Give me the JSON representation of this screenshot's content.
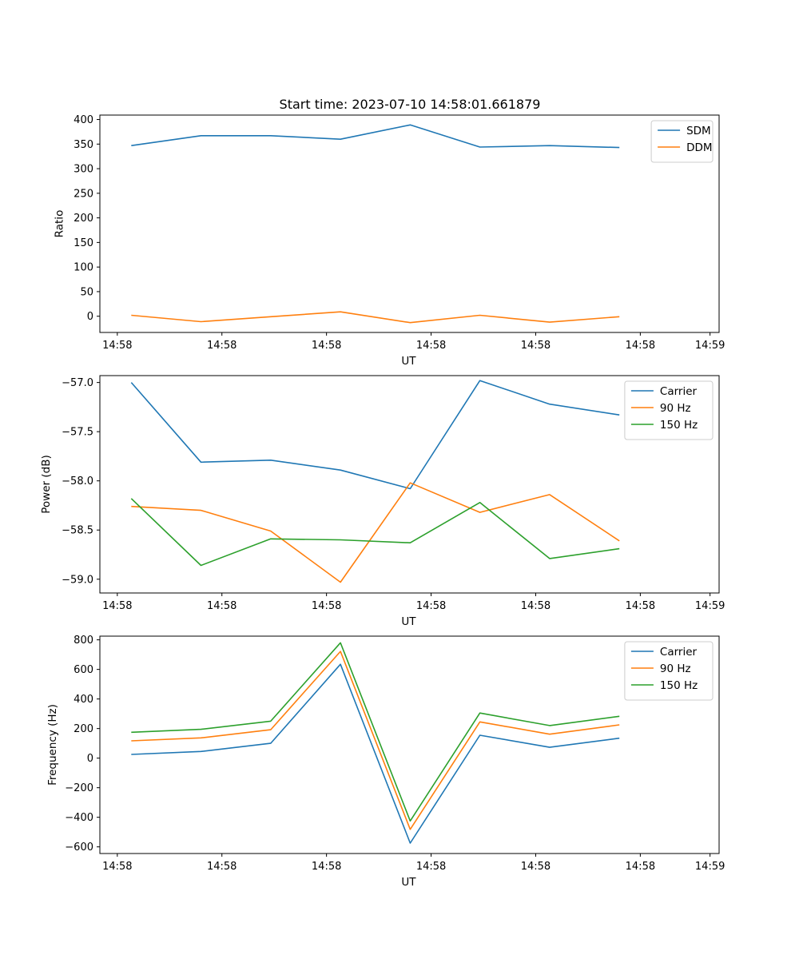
{
  "title": "Start time: 2023-07-10 14:58:01.661879",
  "colors": {
    "blue": "#1f77b4",
    "orange": "#ff7f0e",
    "green": "#2ca02c"
  },
  "chart_data": [
    {
      "type": "line",
      "xlabel": "UT",
      "ylabel": "Ratio",
      "x": [
        1,
        2,
        3,
        4,
        5,
        6,
        7,
        8
      ],
      "xlim": [
        0.55,
        9.43
      ],
      "x_ticks": [
        {
          "value": 0.8,
          "label": "14:58"
        },
        {
          "value": 2.3,
          "label": "14:58"
        },
        {
          "value": 3.8,
          "label": "14:58"
        },
        {
          "value": 5.3,
          "label": "14:58"
        },
        {
          "value": 6.8,
          "label": "14:58"
        },
        {
          "value": 8.3,
          "label": "14:58"
        },
        {
          "value": 9.3,
          "label": "14:59"
        }
      ],
      "ylim": [
        -33,
        409
      ],
      "y_ticks": [
        {
          "value": 400,
          "label": "400"
        },
        {
          "value": 350,
          "label": "350"
        },
        {
          "value": 300,
          "label": "300"
        },
        {
          "value": 250,
          "label": "250"
        },
        {
          "value": 200,
          "label": "200"
        },
        {
          "value": 150,
          "label": "150"
        },
        {
          "value": 100,
          "label": "100"
        },
        {
          "value": 50,
          "label": "50"
        },
        {
          "value": 0,
          "label": "0"
        }
      ],
      "legend": "top-right",
      "series": [
        {
          "name": "SDM",
          "color": "#1f77b4",
          "values": [
            347,
            367,
            367,
            360,
            389,
            344,
            347,
            343
          ]
        },
        {
          "name": "DDM",
          "color": "#ff7f0e",
          "values": [
            2,
            -11,
            -1,
            9,
            -13,
            2,
            -12,
            -1
          ]
        }
      ]
    },
    {
      "type": "line",
      "xlabel": "UT",
      "ylabel": "Power (dB)",
      "x": [
        1,
        2,
        3,
        4,
        5,
        6,
        7,
        8
      ],
      "xlim": [
        0.55,
        9.43
      ],
      "x_ticks": [
        {
          "value": 0.8,
          "label": "14:58"
        },
        {
          "value": 2.3,
          "label": "14:58"
        },
        {
          "value": 3.8,
          "label": "14:58"
        },
        {
          "value": 5.3,
          "label": "14:58"
        },
        {
          "value": 6.8,
          "label": "14:58"
        },
        {
          "value": 8.3,
          "label": "14:58"
        },
        {
          "value": 9.3,
          "label": "14:59"
        }
      ],
      "ylim": [
        -59.14,
        -56.93
      ],
      "y_ticks": [
        {
          "value": -57.0,
          "label": "−57.0"
        },
        {
          "value": -57.5,
          "label": "−57.5"
        },
        {
          "value": -58.0,
          "label": "−58.0"
        },
        {
          "value": -58.5,
          "label": "−58.5"
        },
        {
          "value": -59.0,
          "label": "−59.0"
        }
      ],
      "legend": "top-right",
      "series": [
        {
          "name": "Carrier",
          "color": "#1f77b4",
          "values": [
            -57.0,
            -57.81,
            -57.79,
            -57.89,
            -58.08,
            -56.98,
            -57.22,
            -57.33
          ]
        },
        {
          "name": "90 Hz",
          "color": "#ff7f0e",
          "values": [
            -58.26,
            -58.3,
            -58.51,
            -59.03,
            -58.02,
            -58.32,
            -58.14,
            -58.61
          ]
        },
        {
          "name": "150 Hz",
          "color": "#2ca02c",
          "values": [
            -58.18,
            -58.86,
            -58.59,
            -58.6,
            -58.63,
            -58.22,
            -58.79,
            -58.69
          ]
        }
      ]
    },
    {
      "type": "line",
      "xlabel": "UT",
      "ylabel": "Frequency (Hz)",
      "x": [
        1,
        2,
        3,
        4,
        5,
        6,
        7,
        8
      ],
      "xlim": [
        0.55,
        9.43
      ],
      "x_ticks": [
        {
          "value": 0.8,
          "label": "14:58"
        },
        {
          "value": 2.3,
          "label": "14:58"
        },
        {
          "value": 3.8,
          "label": "14:58"
        },
        {
          "value": 5.3,
          "label": "14:58"
        },
        {
          "value": 6.8,
          "label": "14:58"
        },
        {
          "value": 8.3,
          "label": "14:58"
        },
        {
          "value": 9.3,
          "label": "14:59"
        }
      ],
      "ylim": [
        -645,
        825
      ],
      "y_ticks": [
        {
          "value": 800,
          "label": "800"
        },
        {
          "value": 600,
          "label": "600"
        },
        {
          "value": 400,
          "label": "400"
        },
        {
          "value": 200,
          "label": "200"
        },
        {
          "value": 0,
          "label": "0"
        },
        {
          "value": -200,
          "label": "−200"
        },
        {
          "value": -400,
          "label": "−400"
        },
        {
          "value": -600,
          "label": "−600"
        }
      ],
      "legend": "top-right",
      "series": [
        {
          "name": "Carrier",
          "color": "#1f77b4",
          "values": [
            25,
            45,
            100,
            635,
            -575,
            155,
            73,
            135
          ]
        },
        {
          "name": "90 Hz",
          "color": "#ff7f0e",
          "values": [
            117,
            137,
            192,
            722,
            -482,
            245,
            162,
            225
          ]
        },
        {
          "name": "150 Hz",
          "color": "#2ca02c",
          "values": [
            175,
            195,
            250,
            780,
            -425,
            305,
            220,
            283
          ]
        }
      ]
    }
  ]
}
